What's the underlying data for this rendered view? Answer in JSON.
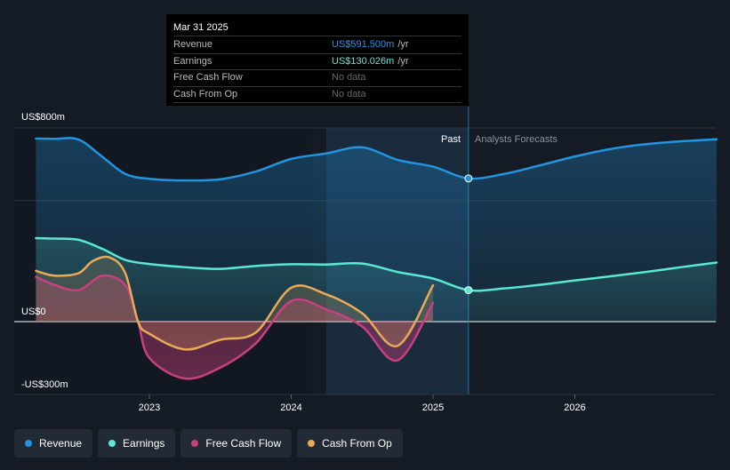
{
  "chart_data": {
    "type": "area",
    "title": "",
    "y_tick_labels": [
      "US$800m",
      "US$0",
      "-US$300m"
    ],
    "ylim": [
      -300,
      800
    ],
    "x_tick_labels": [
      "2023",
      "2024",
      "2025",
      "2026"
    ],
    "past_label": "Past",
    "forecast_label": "Analysts Forecasts",
    "forecast_start": 2025.25,
    "series": [
      {
        "name": "Revenue",
        "color": "#2394df",
        "points": [
          [
            2022.2,
            756
          ],
          [
            2022.33,
            755
          ],
          [
            2022.5,
            752
          ],
          [
            2022.67,
            680
          ],
          [
            2022.83,
            610
          ],
          [
            2023.0,
            590
          ],
          [
            2023.25,
            583
          ],
          [
            2023.5,
            588
          ],
          [
            2023.75,
            620
          ],
          [
            2024.0,
            672
          ],
          [
            2024.25,
            695
          ],
          [
            2024.5,
            720
          ],
          [
            2024.75,
            668
          ],
          [
            2025.0,
            640
          ],
          [
            2025.25,
            591.5
          ],
          [
            2025.5,
            610
          ],
          [
            2025.75,
            645
          ],
          [
            2026.0,
            682
          ],
          [
            2026.25,
            713
          ],
          [
            2026.5,
            733
          ],
          [
            2026.75,
            745
          ],
          [
            2027.0,
            753
          ]
        ]
      },
      {
        "name": "Earnings",
        "color": "#5be7d2",
        "points": [
          [
            2022.2,
            345
          ],
          [
            2022.33,
            343
          ],
          [
            2022.5,
            338
          ],
          [
            2022.67,
            300
          ],
          [
            2022.83,
            255
          ],
          [
            2023.0,
            238
          ],
          [
            2023.25,
            225
          ],
          [
            2023.5,
            218
          ],
          [
            2023.75,
            230
          ],
          [
            2024.0,
            237
          ],
          [
            2024.25,
            236
          ],
          [
            2024.5,
            240
          ],
          [
            2024.75,
            205
          ],
          [
            2025.0,
            178
          ],
          [
            2025.25,
            130.026
          ],
          [
            2025.5,
            137
          ],
          [
            2025.75,
            152
          ],
          [
            2026.0,
            170
          ],
          [
            2026.25,
            187
          ],
          [
            2026.5,
            205
          ],
          [
            2026.75,
            225
          ],
          [
            2027.0,
            244
          ]
        ]
      },
      {
        "name": "Free Cash Flow",
        "color": "#c9407e",
        "points": [
          [
            2022.2,
            185
          ],
          [
            2022.33,
            152
          ],
          [
            2022.5,
            130
          ],
          [
            2022.67,
            190
          ],
          [
            2022.83,
            150
          ],
          [
            2022.92,
            0
          ],
          [
            2023.0,
            -150
          ],
          [
            2023.25,
            -235
          ],
          [
            2023.5,
            -190
          ],
          [
            2023.75,
            -90
          ],
          [
            2024.0,
            85
          ],
          [
            2024.25,
            50
          ],
          [
            2024.5,
            -20
          ],
          [
            2024.75,
            -160
          ],
          [
            2025.0,
            78
          ]
        ]
      },
      {
        "name": "Cash From Op",
        "color": "#e8ab58",
        "points": [
          [
            2022.2,
            210
          ],
          [
            2022.33,
            190
          ],
          [
            2022.5,
            200
          ],
          [
            2022.6,
            250
          ],
          [
            2022.72,
            265
          ],
          [
            2022.83,
            200
          ],
          [
            2022.92,
            0
          ],
          [
            2023.0,
            -50
          ],
          [
            2023.25,
            -115
          ],
          [
            2023.5,
            -75
          ],
          [
            2023.75,
            -45
          ],
          [
            2024.0,
            140
          ],
          [
            2024.25,
            112
          ],
          [
            2024.5,
            35
          ],
          [
            2024.75,
            -100
          ],
          [
            2025.0,
            150
          ]
        ]
      }
    ]
  },
  "tooltip": {
    "date": "Mar 31 2025",
    "rows": [
      {
        "label": "Revenue",
        "value": "US$591.500m",
        "unit": "/yr"
      },
      {
        "label": "Earnings",
        "value": "US$130.026m",
        "unit": "/yr"
      },
      {
        "label": "Free Cash Flow",
        "value": "No data",
        "unit": ""
      },
      {
        "label": "Cash From Op",
        "value": "No data",
        "unit": ""
      }
    ]
  },
  "legend": [
    {
      "label": "Revenue",
      "color": "#2394df"
    },
    {
      "label": "Earnings",
      "color": "#5be7d2"
    },
    {
      "label": "Free Cash Flow",
      "color": "#c9407e"
    },
    {
      "label": "Cash From Op",
      "color": "#e8ab58"
    }
  ]
}
